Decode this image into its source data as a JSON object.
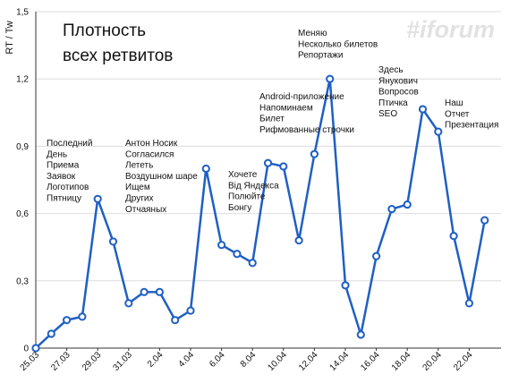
{
  "chart_data": {
    "type": "line",
    "title": [
      "Плотность",
      "всех ретвитов"
    ],
    "watermark": "#iforum",
    "y_label": "RT / Tw",
    "categories": [
      "25.03",
      null,
      "27.03",
      null,
      "29.03",
      null,
      "31.03",
      null,
      "2.04",
      null,
      "4.04",
      null,
      "6.04",
      null,
      "8.04",
      null,
      "10.04",
      null,
      "12.04",
      null,
      "14.04",
      null,
      "16.04",
      null,
      "18.04",
      null,
      "20.04",
      null,
      "22.04",
      null
    ],
    "series": [
      {
        "name": "RT / Tw",
        "color": "#1f5fc4",
        "values": [
          0,
          0.064,
          0.125,
          0.14,
          0.665,
          0.475,
          0.2,
          0.25,
          0.25,
          0.125,
          0.167,
          0.8,
          0.46,
          0.42,
          0.38,
          0.825,
          0.81,
          0.48,
          0.865,
          1.2,
          0.28,
          0.06,
          0.41,
          0.62,
          0.64,
          1.065,
          0.965,
          0.5,
          0.2,
          0.57
        ]
      }
    ],
    "ylim": [
      0,
      1.5
    ],
    "yticks": [
      0,
      {
        "value": 0.3,
        "label": "0,3"
      },
      {
        "value": 0.6,
        "label": "0,6"
      },
      {
        "value": 0.9,
        "label": "0,9"
      },
      {
        "value": 1.2,
        "label": "1,2"
      },
      {
        "value": 1.5,
        "label": "1,5"
      }
    ],
    "grid": true,
    "annotations": [
      [
        "Последний",
        "День",
        "Приема",
        "Заявок",
        "Логотипов",
        "Пятницу"
      ],
      [
        "Антон Носик",
        "Согласился",
        "Лететь",
        "Воздушном шаре",
        "Ищем",
        "Других",
        "Отчаяных"
      ],
      [
        "Хочете",
        "Від Яндекса",
        "Полюйте",
        "Бонгу"
      ],
      [
        "Android-приложение",
        "Напоминаем",
        "Билет",
        "Рифмованные строчки"
      ],
      [
        "Меняю",
        "Несколько билетов",
        "Репортажи"
      ],
      [
        "Здесь",
        "Янукович",
        "Вопросов",
        "Птичка",
        "SEO"
      ],
      [
        "Наш",
        "Отчет",
        "Презентация"
      ]
    ]
  }
}
